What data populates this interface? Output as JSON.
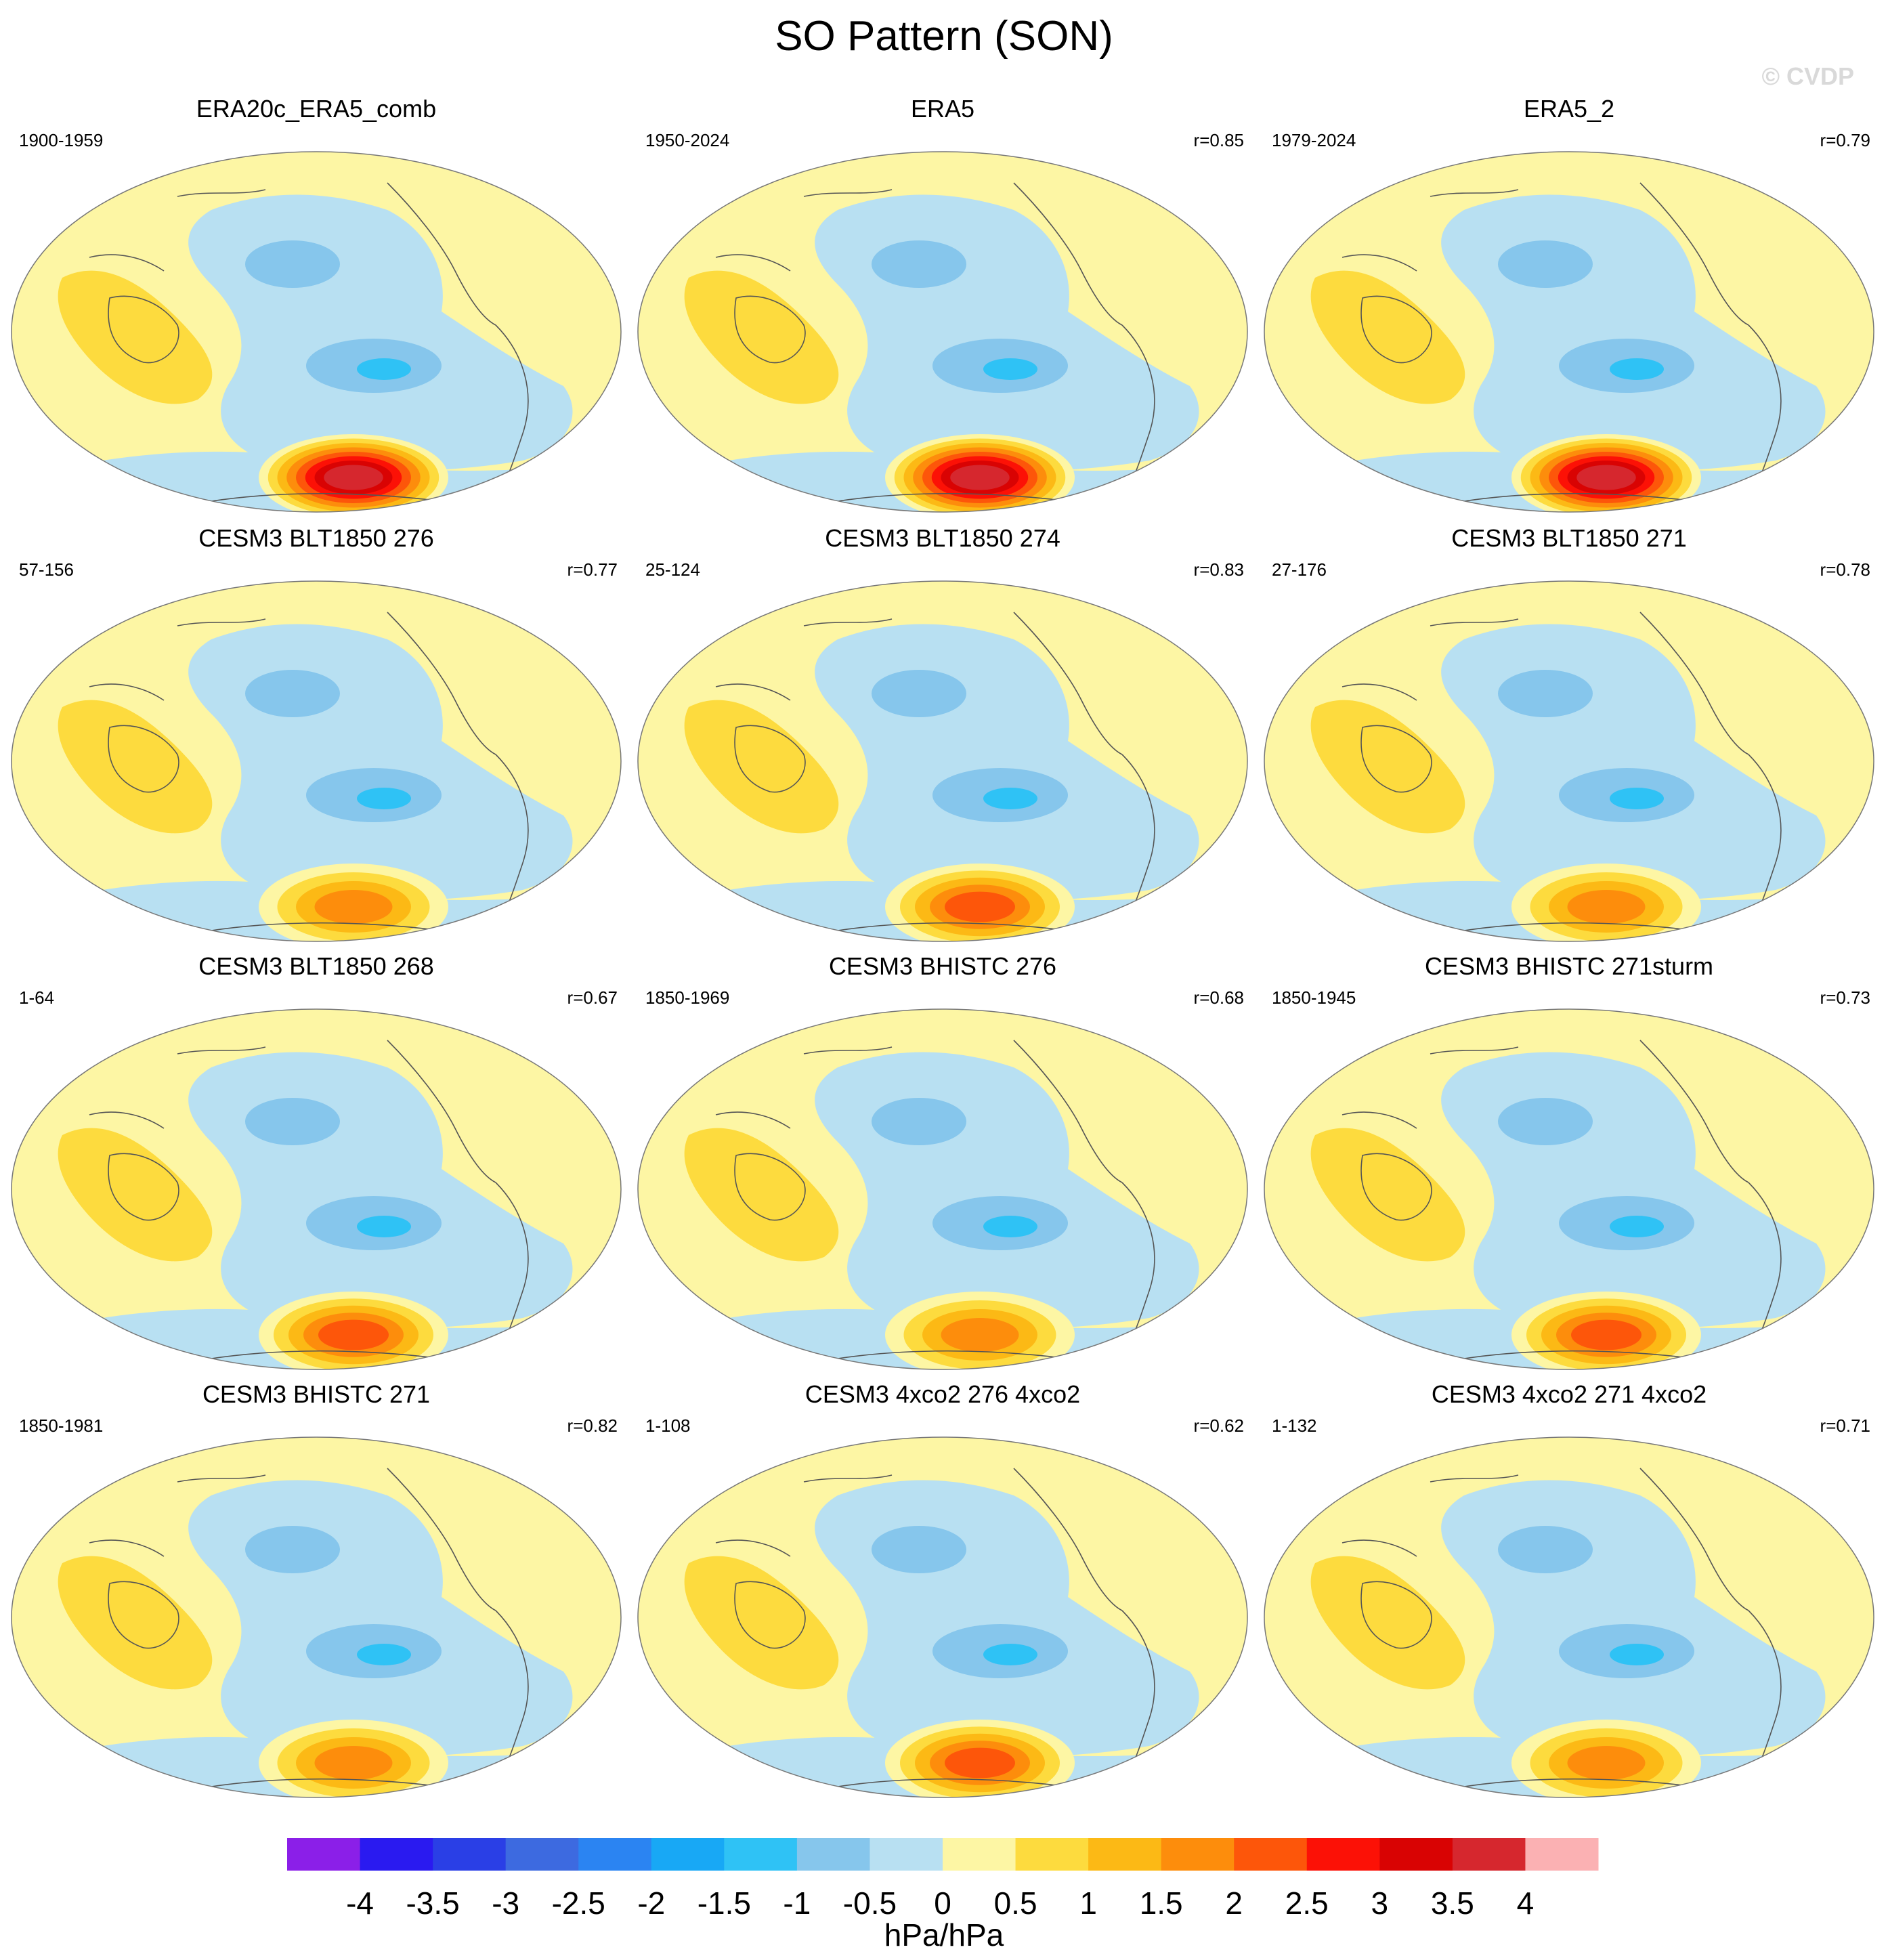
{
  "title": "SO Pattern (SON)",
  "watermark": "© CVDP",
  "units": "hPa/hPa",
  "colorbar": {
    "ticks": [
      "-4",
      "-3.5",
      "-3",
      "-2.5",
      "-2",
      "-1.5",
      "-1",
      "-0.5",
      "0",
      "0.5",
      "1",
      "1.5",
      "2",
      "2.5",
      "3",
      "3.5",
      "4"
    ],
    "colors": [
      "#8b1fe8",
      "#2a1af0",
      "#2a3fe6",
      "#3d6ae0",
      "#2b84f2",
      "#18a8f5",
      "#2fc2f5",
      "#86c6ec",
      "#b8e0f2",
      "#fdf6a4",
      "#fddb3e",
      "#fcb915",
      "#fd8d0c",
      "#fd560a",
      "#fc1106",
      "#d90303",
      "#d6272e",
      "#fbb1b3"
    ]
  },
  "panels": [
    {
      "title": "ERA20c_ERA5_comb",
      "period": "1900-1959",
      "corr": "",
      "so_peak": 3.6
    },
    {
      "title": "ERA5",
      "period": "1950-2024",
      "corr": "r=0.85",
      "so_peak": 3.5
    },
    {
      "title": "ERA5_2",
      "period": "1979-2024",
      "corr": "r=0.79",
      "so_peak": 3.6
    },
    {
      "title": "CESM3 BLT1850 276",
      "period": "57-156",
      "corr": "r=0.77",
      "so_peak": 1.6
    },
    {
      "title": "CESM3 BLT1850 274",
      "period": "25-124",
      "corr": "r=0.83",
      "so_peak": 2.3
    },
    {
      "title": "CESM3 BLT1850 271",
      "period": "27-176",
      "corr": "r=0.78",
      "so_peak": 1.7
    },
    {
      "title": "CESM3 BLT1850 268",
      "period": "1-64",
      "corr": "r=0.67",
      "so_peak": 2.2
    },
    {
      "title": "CESM3 BHISTC 276",
      "period": "1850-1969",
      "corr": "r=0.68",
      "so_peak": 1.6
    },
    {
      "title": "CESM3 BHISTC 271sturm",
      "period": "1850-1945",
      "corr": "r=0.73",
      "so_peak": 2.0
    },
    {
      "title": "CESM3 BHISTC 271",
      "period": "1850-1981",
      "corr": "r=0.82",
      "so_peak": 1.7
    },
    {
      "title": "CESM3 4xco2 276 4xco2",
      "period": "1-108",
      "corr": "r=0.62",
      "so_peak": 2.0
    },
    {
      "title": "CESM3 4xco2 271 4xco2",
      "period": "1-132",
      "corr": "r=0.71",
      "so_peak": 1.8
    }
  ]
}
